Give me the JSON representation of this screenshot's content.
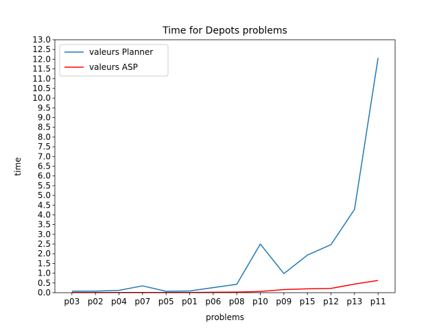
{
  "chart_data": {
    "type": "line",
    "title": "Time for Depots problems",
    "xlabel": "problems",
    "ylabel": "time",
    "categories": [
      "p03",
      "p02",
      "p04",
      "p07",
      "p05",
      "p01",
      "p06",
      "p08",
      "p10",
      "p09",
      "p15",
      "p12",
      "p13",
      "p11"
    ],
    "ylim": [
      0,
      13.0
    ],
    "yticks": [
      "0.0",
      "0.5",
      "1.0",
      "1.5",
      "2.0",
      "2.5",
      "3.0",
      "3.5",
      "4.0",
      "4.5",
      "5.0",
      "5.5",
      "6.0",
      "6.5",
      "7.0",
      "7.5",
      "8.0",
      "8.5",
      "9.0",
      "9.5",
      "10.0",
      "10.5",
      "11.0",
      "11.5",
      "12.0",
      "12.5",
      "13.0"
    ],
    "legend_position": "top-left",
    "grid": false,
    "series": [
      {
        "name": "valeurs Planner",
        "color": "#1f77b4",
        "values": [
          0.08,
          0.08,
          0.12,
          0.35,
          0.07,
          0.09,
          0.26,
          0.43,
          2.5,
          0.98,
          1.93,
          2.47,
          4.28,
          12.07
        ]
      },
      {
        "name": "valeurs ASP",
        "color": "#ff0000",
        "values": [
          0.01,
          0.01,
          0.01,
          0.01,
          0.01,
          0.01,
          0.02,
          0.03,
          0.06,
          0.16,
          0.2,
          0.22,
          0.44,
          0.63
        ]
      }
    ]
  }
}
